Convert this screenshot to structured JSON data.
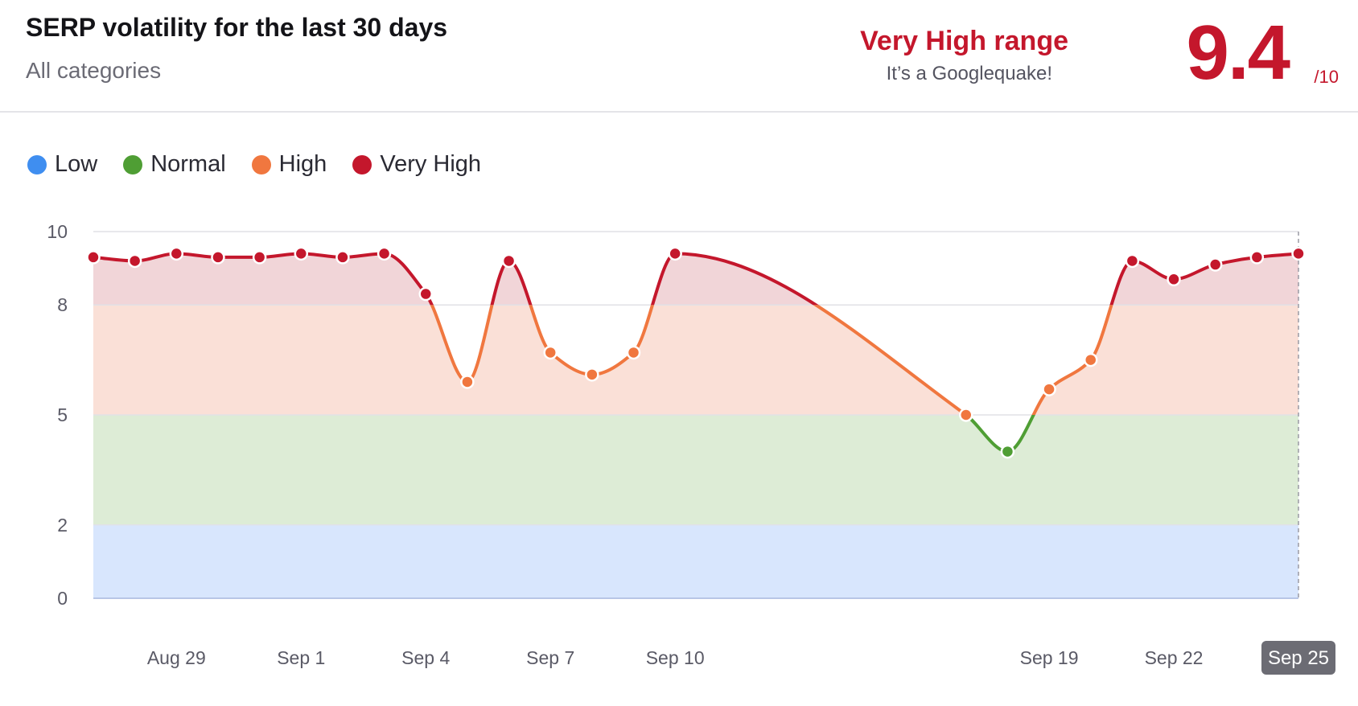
{
  "header": {
    "title": "SERP volatility for the last 30 days",
    "subtitle": "All categories",
    "range_label": "Very High range",
    "range_description": "It’s a Googlequake!",
    "score": "9.4",
    "score_max": "/10"
  },
  "legend": [
    {
      "label": "Low",
      "color": "#3f8ef0"
    },
    {
      "label": "Normal",
      "color": "#4f9e34"
    },
    {
      "label": "High",
      "color": "#f0773f"
    },
    {
      "label": "Very High",
      "color": "#c4172c"
    }
  ],
  "chart_data": {
    "type": "line",
    "title": "SERP volatility for the last 30 days",
    "ylim": [
      0,
      10
    ],
    "y_ticks": [
      "0",
      "2",
      "5",
      "8",
      "10"
    ],
    "x_tick_labels": [
      {
        "x": 5,
        "label": "Aug 29"
      },
      {
        "x": 8,
        "label": "Sep 1"
      },
      {
        "x": 11,
        "label": "Sep 4"
      },
      {
        "x": 14,
        "label": "Sep 7"
      },
      {
        "x": 17,
        "label": "Sep 10"
      },
      {
        "x": 26,
        "label": "Sep 19"
      },
      {
        "x": 29,
        "label": "Sep 22"
      },
      {
        "x": 32,
        "label": "Sep 25",
        "highlighted": true
      }
    ],
    "x_range": [
      3,
      32
    ],
    "bands": [
      {
        "name": "Low",
        "from": 0,
        "to": 2,
        "color": "#d8e6fd"
      },
      {
        "name": "Normal",
        "from": 2,
        "to": 5,
        "color": "#ddecd6"
      },
      {
        "name": "High",
        "from": 5,
        "to": 8,
        "color": "#fae0d7"
      },
      {
        "name": "Very High",
        "from": 8,
        "to": 10,
        "color": "#f1d5d8"
      }
    ],
    "grid": true,
    "series": [
      {
        "points": [
          {
            "x": 3,
            "y": 9.3
          },
          {
            "x": 4,
            "y": 9.2
          },
          {
            "x": 5,
            "y": 9.4
          },
          {
            "x": 6,
            "y": 9.3
          },
          {
            "x": 7,
            "y": 9.3
          },
          {
            "x": 8,
            "y": 9.4
          },
          {
            "x": 9,
            "y": 9.3
          },
          {
            "x": 10,
            "y": 9.4
          },
          {
            "x": 11,
            "y": 8.3
          },
          {
            "x": 12,
            "y": 5.9
          },
          {
            "x": 13,
            "y": 9.2
          },
          {
            "x": 14,
            "y": 6.7
          },
          {
            "x": 15,
            "y": 6.1
          },
          {
            "x": 16,
            "y": 6.7
          },
          {
            "x": 17,
            "y": 9.4
          },
          {
            "x": 24,
            "y": 5.0
          },
          {
            "x": 25,
            "y": 4.0
          },
          {
            "x": 26,
            "y": 5.7
          },
          {
            "x": 27,
            "y": 6.5
          },
          {
            "x": 28,
            "y": 9.2
          },
          {
            "x": 29,
            "y": 8.7
          },
          {
            "x": 30,
            "y": 9.1
          },
          {
            "x": 31,
            "y": 9.3
          },
          {
            "x": 32,
            "y": 9.4
          }
        ]
      }
    ]
  }
}
